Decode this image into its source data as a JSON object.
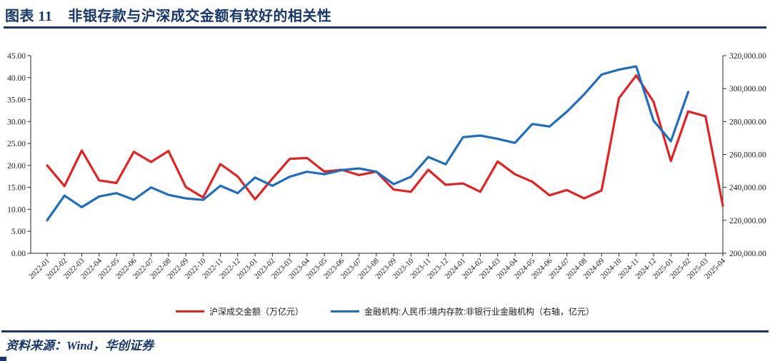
{
  "figure": {
    "label": "图表 11",
    "title": "非银存款与沪深成交金额有较好的相关性"
  },
  "source": {
    "text": "资料来源：Wind，华创证券"
  },
  "colors": {
    "accent_navy": "#17376b",
    "series_red": "#e02424",
    "series_blue": "#1e6dbf",
    "axis": "#262626"
  },
  "chart_data": {
    "type": "line",
    "title": "非银存款与沪深成交金额有较好的相关性",
    "grid": false,
    "legend_position": "bottom",
    "categories": [
      "2022-01",
      "2022-02",
      "2022-03",
      "2022-04",
      "2022-05",
      "2022-06",
      "2022-07",
      "2022-08",
      "2022-09",
      "2022-10",
      "2022-11",
      "2022-12",
      "2023-01",
      "2023-02",
      "2023-03",
      "2023-04",
      "2023-05",
      "2023-06",
      "2023-07",
      "2023-08",
      "2023-09",
      "2023-10",
      "2023-11",
      "2023-12",
      "2024-01",
      "2024-02",
      "2024-03",
      "2024-04",
      "2024-05",
      "2024-06",
      "2024-07",
      "2024-08",
      "2024-09",
      "2024-10",
      "2024-11",
      "2024-12",
      "2025-01",
      "2025-02",
      "2025-03",
      "2025-04"
    ],
    "left_axis": {
      "min": 0,
      "max": 45,
      "step": 5,
      "tick_labels": [
        "0.00",
        "5.00",
        "10.00",
        "15.00",
        "20.00",
        "25.00",
        "30.00",
        "35.00",
        "40.00",
        "45.00"
      ]
    },
    "right_axis": {
      "min": 200000,
      "max": 320000,
      "step": 20000,
      "tick_labels": [
        "200,000.00",
        "220,000.00",
        "240,000.00",
        "260,000.00",
        "280,000.00",
        "300,000.00",
        "320,000.00"
      ]
    },
    "series": [
      {
        "key": "hs-turnover",
        "name": "沪深成交金额（万亿元）",
        "axis": "left",
        "color": "#e02424",
        "values": [
          20.0,
          15.3,
          23.4,
          16.6,
          16.0,
          23.1,
          20.8,
          23.3,
          15.1,
          12.7,
          20.3,
          17.5,
          12.3,
          17.0,
          21.5,
          21.7,
          18.6,
          19.0,
          17.8,
          18.6,
          14.5,
          14.0,
          19.0,
          15.6,
          15.9,
          14.0,
          20.9,
          18.0,
          16.3,
          13.2,
          14.4,
          12.5,
          14.3,
          35.3,
          40.5,
          34.5,
          21.0,
          32.3,
          31.2,
          10.8
        ]
      },
      {
        "key": "nonbank-deposits",
        "name": "金融机构:人民币:境内存款:非银行业金融机构（右轴，亿元）",
        "axis": "right",
        "color": "#1e6dbf",
        "values": [
          220000,
          235000,
          228000,
          234500,
          236500,
          232500,
          240000,
          235500,
          233300,
          232400,
          241000,
          236500,
          246000,
          241000,
          246500,
          249500,
          248000,
          250500,
          251500,
          249500,
          242000,
          246500,
          258500,
          254000,
          270500,
          271500,
          269500,
          267000,
          278500,
          277000,
          286000,
          296500,
          308500,
          311500,
          313500,
          280500,
          268000,
          298000,
          null,
          null
        ]
      }
    ]
  }
}
